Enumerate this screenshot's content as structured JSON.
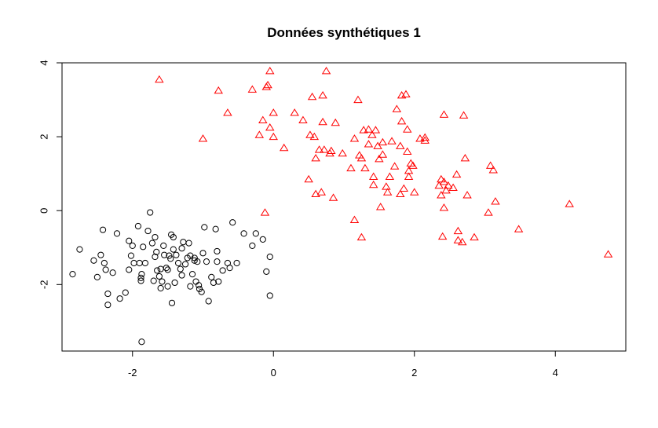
{
  "chart_data": {
    "type": "scatter",
    "title": "Données synthétiques 1",
    "xlabel": "",
    "ylabel": "",
    "xlim": [
      -3.0,
      5.0
    ],
    "ylim": [
      -3.8,
      4.0
    ],
    "xticks": [
      -2,
      0,
      2,
      4
    ],
    "yticks": [
      -2,
      0,
      2,
      4
    ],
    "grid": false,
    "legend": "none",
    "series": [
      {
        "marker": "circle",
        "color": "#000000",
        "points": [
          [
            -2.85,
            -1.72
          ],
          [
            -2.75,
            -1.05
          ],
          [
            -2.55,
            -1.35
          ],
          [
            -2.5,
            -1.8
          ],
          [
            -2.45,
            -1.2
          ],
          [
            -2.42,
            -0.52
          ],
          [
            -2.4,
            -1.42
          ],
          [
            -2.38,
            -1.6
          ],
          [
            -2.35,
            -2.25
          ],
          [
            -2.35,
            -2.55
          ],
          [
            -2.28,
            -1.68
          ],
          [
            -2.22,
            -0.62
          ],
          [
            -2.18,
            -2.38
          ],
          [
            -2.1,
            -2.22
          ],
          [
            -2.05,
            -1.6
          ],
          [
            -2.05,
            -0.82
          ],
          [
            -2.02,
            -1.22
          ],
          [
            -2.0,
            -0.95
          ],
          [
            -1.98,
            -1.42
          ],
          [
            -1.92,
            -0.42
          ],
          [
            -1.9,
            -1.42
          ],
          [
            -1.88,
            -1.82
          ],
          [
            -1.88,
            -1.9
          ],
          [
            -1.87,
            -1.72
          ],
          [
            -1.87,
            -3.55
          ],
          [
            -1.85,
            -0.98
          ],
          [
            -1.82,
            -1.42
          ],
          [
            -1.78,
            -0.55
          ],
          [
            -1.75,
            -0.05
          ],
          [
            -1.72,
            -0.88
          ],
          [
            -1.7,
            -1.9
          ],
          [
            -1.68,
            -0.72
          ],
          [
            -1.68,
            -1.25
          ],
          [
            -1.66,
            -1.12
          ],
          [
            -1.65,
            -1.62
          ],
          [
            -1.62,
            -1.78
          ],
          [
            -1.6,
            -2.1
          ],
          [
            -1.6,
            -1.58
          ],
          [
            -1.58,
            -1.92
          ],
          [
            -1.56,
            -0.95
          ],
          [
            -1.55,
            -1.2
          ],
          [
            -1.52,
            -1.55
          ],
          [
            -1.5,
            -1.6
          ],
          [
            -1.5,
            -2.05
          ],
          [
            -1.48,
            -1.22
          ],
          [
            -1.46,
            -1.3
          ],
          [
            -1.45,
            -0.65
          ],
          [
            -1.44,
            -2.5
          ],
          [
            -1.42,
            -1.05
          ],
          [
            -1.42,
            -0.72
          ],
          [
            -1.4,
            -1.95
          ],
          [
            -1.38,
            -1.2
          ],
          [
            -1.35,
            -1.42
          ],
          [
            -1.32,
            -1.58
          ],
          [
            -1.3,
            -1.75
          ],
          [
            -1.3,
            -1.02
          ],
          [
            -1.28,
            -0.85
          ],
          [
            -1.25,
            -1.45
          ],
          [
            -1.22,
            -1.28
          ],
          [
            -1.2,
            -0.88
          ],
          [
            -1.18,
            -1.22
          ],
          [
            -1.18,
            -2.05
          ],
          [
            -1.15,
            -1.72
          ],
          [
            -1.12,
            -1.28
          ],
          [
            -1.12,
            -1.35
          ],
          [
            -1.1,
            -1.92
          ],
          [
            -1.08,
            -1.38
          ],
          [
            -1.06,
            -2.02
          ],
          [
            -1.05,
            -2.12
          ],
          [
            -1.02,
            -2.2
          ],
          [
            -1.0,
            -1.15
          ],
          [
            -0.98,
            -0.45
          ],
          [
            -0.95,
            -1.38
          ],
          [
            -0.92,
            -2.45
          ],
          [
            -0.88,
            -1.8
          ],
          [
            -0.85,
            -1.95
          ],
          [
            -0.82,
            -0.5
          ],
          [
            -0.8,
            -1.38
          ],
          [
            -0.8,
            -1.1
          ],
          [
            -0.78,
            -1.92
          ],
          [
            -0.72,
            -1.62
          ],
          [
            -0.65,
            -1.42
          ],
          [
            -0.62,
            -1.55
          ],
          [
            -0.58,
            -0.32
          ],
          [
            -0.52,
            -1.42
          ],
          [
            -0.42,
            -0.62
          ],
          [
            -0.3,
            -0.95
          ],
          [
            -0.25,
            -0.62
          ],
          [
            -0.15,
            -0.78
          ],
          [
            -0.1,
            -1.65
          ],
          [
            -0.05,
            -1.25
          ],
          [
            -0.05,
            -2.3
          ]
        ]
      },
      {
        "marker": "triangle",
        "color": "#ff0000",
        "points": [
          [
            -1.62,
            3.55
          ],
          [
            -1.0,
            1.95
          ],
          [
            -0.78,
            3.25
          ],
          [
            -0.65,
            2.65
          ],
          [
            -0.3,
            3.28
          ],
          [
            -0.2,
            2.05
          ],
          [
            -0.15,
            2.45
          ],
          [
            -0.12,
            -0.05
          ],
          [
            -0.1,
            3.35
          ],
          [
            -0.08,
            3.4
          ],
          [
            -0.05,
            3.78
          ],
          [
            -0.05,
            2.25
          ],
          [
            0.0,
            2.65
          ],
          [
            0.0,
            2.0
          ],
          [
            0.15,
            1.7
          ],
          [
            0.3,
            2.65
          ],
          [
            0.42,
            2.45
          ],
          [
            0.5,
            0.85
          ],
          [
            0.52,
            2.05
          ],
          [
            0.55,
            3.08
          ],
          [
            0.58,
            2.0
          ],
          [
            0.6,
            1.42
          ],
          [
            0.6,
            0.45
          ],
          [
            0.65,
            1.65
          ],
          [
            0.68,
            0.5
          ],
          [
            0.7,
            2.4
          ],
          [
            0.7,
            3.12
          ],
          [
            0.72,
            1.65
          ],
          [
            0.75,
            3.78
          ],
          [
            0.8,
            1.55
          ],
          [
            0.82,
            1.62
          ],
          [
            0.85,
            0.35
          ],
          [
            0.88,
            2.38
          ],
          [
            0.98,
            1.55
          ],
          [
            1.1,
            1.15
          ],
          [
            1.15,
            1.95
          ],
          [
            1.15,
            -0.25
          ],
          [
            1.2,
            3.0
          ],
          [
            1.22,
            1.5
          ],
          [
            1.25,
            1.42
          ],
          [
            1.25,
            -0.72
          ],
          [
            1.28,
            2.18
          ],
          [
            1.3,
            1.15
          ],
          [
            1.35,
            1.8
          ],
          [
            1.35,
            2.2
          ],
          [
            1.4,
            2.05
          ],
          [
            1.42,
            0.7
          ],
          [
            1.42,
            0.92
          ],
          [
            1.45,
            2.18
          ],
          [
            1.48,
            1.75
          ],
          [
            1.5,
            1.4
          ],
          [
            1.52,
            0.1
          ],
          [
            1.55,
            1.52
          ],
          [
            1.55,
            1.85
          ],
          [
            1.6,
            0.65
          ],
          [
            1.62,
            0.5
          ],
          [
            1.65,
            0.92
          ],
          [
            1.68,
            1.88
          ],
          [
            1.72,
            1.2
          ],
          [
            1.75,
            2.75
          ],
          [
            1.8,
            1.75
          ],
          [
            1.8,
            0.45
          ],
          [
            1.82,
            3.12
          ],
          [
            1.82,
            2.42
          ],
          [
            1.85,
            0.6
          ],
          [
            1.88,
            3.15
          ],
          [
            1.9,
            1.6
          ],
          [
            1.9,
            2.2
          ],
          [
            1.92,
            1.08
          ],
          [
            1.92,
            0.92
          ],
          [
            1.95,
            1.28
          ],
          [
            1.98,
            1.22
          ],
          [
            2.0,
            0.5
          ],
          [
            2.08,
            1.95
          ],
          [
            2.15,
            1.98
          ],
          [
            2.15,
            1.9
          ],
          [
            2.35,
            0.68
          ],
          [
            2.38,
            0.85
          ],
          [
            2.38,
            0.42
          ],
          [
            2.4,
            -0.7
          ],
          [
            2.42,
            0.78
          ],
          [
            2.42,
            0.08
          ],
          [
            2.42,
            2.6
          ],
          [
            2.45,
            0.55
          ],
          [
            2.48,
            0.68
          ],
          [
            2.55,
            0.62
          ],
          [
            2.6,
            0.98
          ],
          [
            2.62,
            -0.55
          ],
          [
            2.62,
            -0.8
          ],
          [
            2.68,
            -0.85
          ],
          [
            2.7,
            2.58
          ],
          [
            2.72,
            1.42
          ],
          [
            2.75,
            0.42
          ],
          [
            2.85,
            -0.72
          ],
          [
            3.05,
            -0.05
          ],
          [
            3.08,
            1.22
          ],
          [
            3.12,
            1.1
          ],
          [
            3.15,
            0.25
          ],
          [
            3.48,
            -0.5
          ],
          [
            4.2,
            0.18
          ],
          [
            4.75,
            -1.18
          ]
        ]
      }
    ]
  }
}
